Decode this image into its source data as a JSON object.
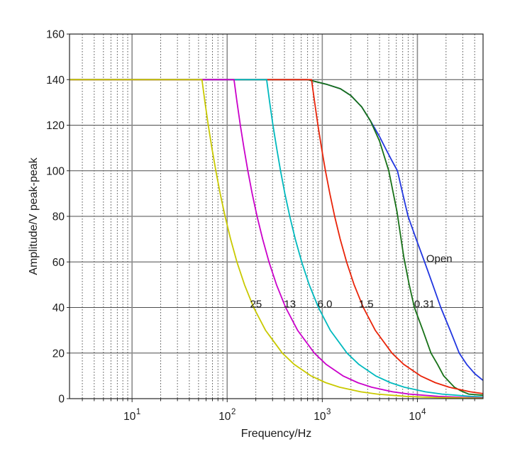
{
  "figure": {
    "background": "#ffffff"
  },
  "chart_data": {
    "type": "line",
    "title": "",
    "xlabel": "Frequency/Hz",
    "ylabel": "Amplitude/V peak-peak",
    "x_scale": "log",
    "y_scale": "linear",
    "xlim": [
      2.2,
      49000
    ],
    "ylim": [
      0,
      160
    ],
    "yticks": [
      0,
      20,
      40,
      60,
      80,
      100,
      120,
      140,
      160
    ],
    "xticks": [
      {
        "f": 10,
        "base": "10",
        "exp": "1"
      },
      {
        "f": 100,
        "base": "10",
        "exp": "2"
      },
      {
        "f": 1000,
        "base": "10",
        "exp": "3"
      },
      {
        "f": 10000,
        "base": "10",
        "exp": "4"
      }
    ],
    "grid": {
      "horizontal_color": "#4d4d4d",
      "major_vertical_color": "#8c8c8c",
      "minor_vertical_color": "#5a5a5a",
      "box_color": "#262626",
      "minor_decades": [
        2,
        3,
        4,
        5,
        6,
        7,
        8,
        9
      ]
    },
    "legend_position": "none",
    "series": [
      {
        "name": "open-load",
        "label": "Open",
        "color": "#2136E0",
        "annotation": {
          "text": "Open",
          "f": 12380,
          "v": 60
        },
        "points": [
          [
            2.2,
            140
          ],
          [
            700,
            140
          ],
          [
            1100,
            138
          ],
          [
            1550,
            136
          ],
          [
            2000,
            133
          ],
          [
            2600,
            128
          ],
          [
            3200,
            122
          ],
          [
            4000,
            115
          ],
          [
            4600,
            110
          ],
          [
            5300,
            105
          ],
          [
            6170,
            100
          ],
          [
            7000,
            90
          ],
          [
            7980,
            80
          ],
          [
            9700,
            70
          ],
          [
            11900,
            60
          ],
          [
            14500,
            50
          ],
          [
            17600,
            40
          ],
          [
            22100,
            30
          ],
          [
            27500,
            20
          ],
          [
            33000,
            15
          ],
          [
            40000,
            11
          ],
          [
            49000,
            8
          ]
        ]
      },
      {
        "name": "load-0.31",
        "label": "0.31",
        "color": "#177117",
        "annotation": {
          "text": "0.31",
          "f": 9246,
          "v": 40
        },
        "points": [
          [
            2.2,
            140
          ],
          [
            700,
            140
          ],
          [
            1100,
            138
          ],
          [
            1550,
            136
          ],
          [
            2000,
            133
          ],
          [
            2600,
            128
          ],
          [
            3200,
            122
          ],
          [
            4000,
            113
          ],
          [
            5000,
            100
          ],
          [
            6100,
            82
          ],
          [
            7200,
            62
          ],
          [
            8200,
            50
          ],
          [
            9300,
            40
          ],
          [
            11400,
            30
          ],
          [
            13900,
            20
          ],
          [
            16300,
            15
          ],
          [
            18900,
            10
          ],
          [
            21500,
            7.5
          ],
          [
            24500,
            5
          ],
          [
            28500,
            3.5
          ],
          [
            34500,
            2
          ],
          [
            48800,
            1.5
          ]
        ]
      },
      {
        "name": "load-1.5",
        "label": "1.5",
        "color": "#E92409",
        "annotation": {
          "text": "1.5",
          "f": 2416,
          "v": 40
        },
        "points": [
          [
            2.2,
            140
          ],
          [
            771,
            140
          ],
          [
            831,
            130
          ],
          [
            900,
            120
          ],
          [
            982,
            110
          ],
          [
            1080,
            100
          ],
          [
            1200,
            90
          ],
          [
            1350,
            80
          ],
          [
            1543,
            70
          ],
          [
            1800,
            60
          ],
          [
            2160,
            50
          ],
          [
            2700,
            40
          ],
          [
            3600,
            30
          ],
          [
            5400,
            20
          ],
          [
            7200,
            15
          ],
          [
            10800,
            10
          ],
          [
            15430,
            7
          ],
          [
            21600,
            5
          ],
          [
            36000,
            3
          ],
          [
            49000,
            2.2
          ]
        ]
      },
      {
        "name": "load-6.0",
        "label": "6.0",
        "color": "#00B9BE",
        "annotation": {
          "text": "6.0",
          "f": 891,
          "v": 40
        },
        "points": [
          [
            2.2,
            140
          ],
          [
            260,
            140
          ],
          [
            280,
            130
          ],
          [
            303,
            120
          ],
          [
            331,
            110
          ],
          [
            364,
            100
          ],
          [
            404,
            90
          ],
          [
            455,
            80
          ],
          [
            520,
            70
          ],
          [
            607,
            60
          ],
          [
            728,
            50
          ],
          [
            910,
            40
          ],
          [
            1213,
            30
          ],
          [
            1820,
            20
          ],
          [
            2427,
            15
          ],
          [
            3640,
            10
          ],
          [
            5200,
            7
          ],
          [
            7280,
            5
          ],
          [
            12130,
            3
          ],
          [
            18200,
            2
          ],
          [
            36400,
            1
          ],
          [
            49000,
            0.74
          ]
        ]
      },
      {
        "name": "load-13",
        "label": "13",
        "color": "#CA00CA",
        "annotation": {
          "text": "13",
          "f": 396,
          "v": 40
        },
        "points": [
          [
            2.2,
            140
          ],
          [
            118,
            140
          ],
          [
            127,
            130
          ],
          [
            137.5,
            120
          ],
          [
            150,
            110
          ],
          [
            165,
            100
          ],
          [
            183,
            90
          ],
          [
            206,
            80
          ],
          [
            236,
            70
          ],
          [
            275,
            60
          ],
          [
            330,
            50
          ],
          [
            412,
            40
          ],
          [
            550,
            30
          ],
          [
            825,
            20
          ],
          [
            1100,
            15
          ],
          [
            1650,
            10
          ],
          [
            2360,
            7
          ],
          [
            3300,
            5
          ],
          [
            5500,
            3
          ],
          [
            8250,
            2
          ],
          [
            16500,
            1
          ],
          [
            33000,
            0.5
          ],
          [
            49000,
            0.34
          ]
        ]
      },
      {
        "name": "load-25",
        "label": "25",
        "color": "#C9C900",
        "annotation": {
          "text": "25",
          "f": 174,
          "v": 40
        },
        "points": [
          [
            2.2,
            140
          ],
          [
            54.3,
            140
          ],
          [
            58.5,
            130
          ],
          [
            63.3,
            120
          ],
          [
            69.1,
            110
          ],
          [
            76,
            100
          ],
          [
            84.4,
            90
          ],
          [
            95,
            80
          ],
          [
            108.6,
            70
          ],
          [
            126.7,
            60
          ],
          [
            152,
            50
          ],
          [
            190,
            40
          ],
          [
            253,
            30
          ],
          [
            380,
            20
          ],
          [
            507,
            15
          ],
          [
            760,
            10
          ],
          [
            1086,
            7
          ],
          [
            1520,
            5
          ],
          [
            2533,
            3
          ],
          [
            3800,
            2
          ],
          [
            7600,
            1
          ],
          [
            15200,
            0.5
          ],
          [
            49000,
            0.16
          ]
        ]
      }
    ]
  }
}
